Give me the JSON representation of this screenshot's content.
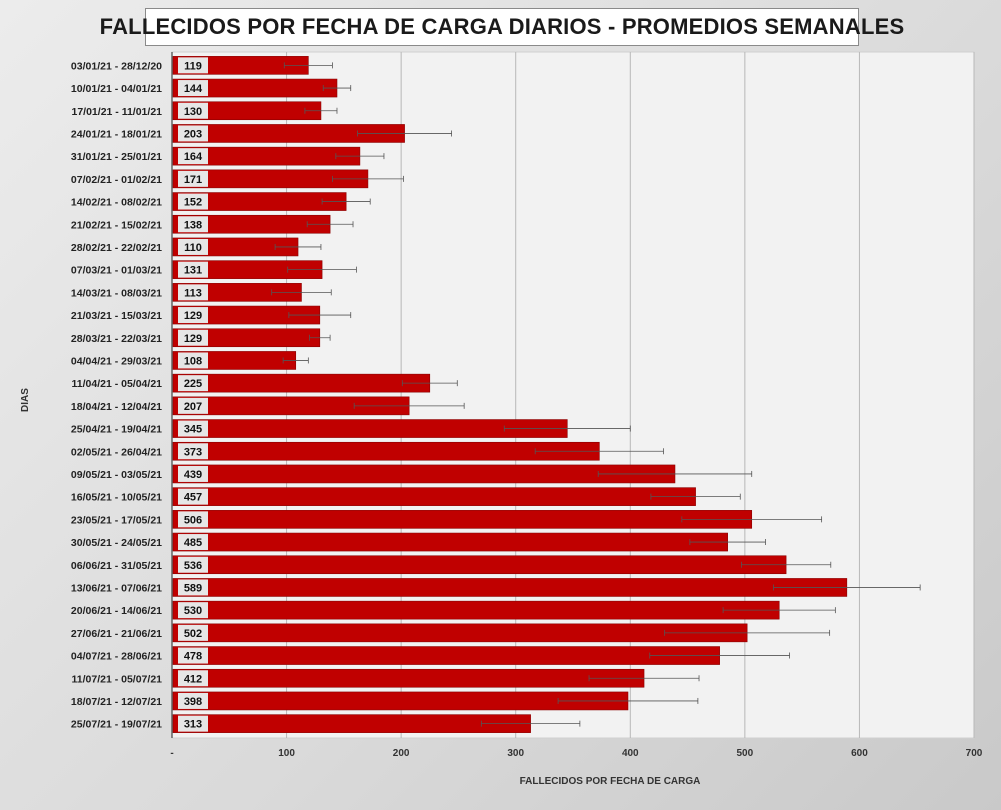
{
  "chart_data": {
    "type": "bar",
    "orientation": "horizontal",
    "title": "FALLECIDOS POR FECHA DE CARGA DIARIOS - PROMEDIOS SEMANALES",
    "xlabel": "FALLECIDOS POR FECHA DE CARGA",
    "ylabel": "DIAS",
    "xlim": [
      0,
      700
    ],
    "xticks": [
      "-",
      "100",
      "200",
      "300",
      "400",
      "500",
      "600",
      "700"
    ],
    "grid": true,
    "bar_color": "#c00000",
    "categories": [
      "03/01/21 - 28/12/20",
      "10/01/21 - 04/01/21",
      "17/01/21 - 11/01/21",
      "24/01/21 - 18/01/21",
      "31/01/21 - 25/01/21",
      "07/02/21 - 01/02/21",
      "14/02/21 - 08/02/21",
      "21/02/21 - 15/02/21",
      "28/02/21 - 22/02/21",
      "07/03/21 - 01/03/21",
      "14/03/21 - 08/03/21",
      "21/03/21 - 15/03/21",
      "28/03/21 - 22/03/21",
      "04/04/21 - 29/03/21",
      "11/04/21 - 05/04/21",
      "18/04/21 - 12/04/21",
      "25/04/21 - 19/04/21",
      "02/05/21 - 26/04/21",
      "09/05/21 - 03/05/21",
      "16/05/21 - 10/05/21",
      "23/05/21 - 17/05/21",
      "30/05/21 - 24/05/21",
      "06/06/21 - 31/05/21",
      "13/06/21 - 07/06/21",
      "20/06/21 - 14/06/21",
      "27/06/21 - 21/06/21",
      "04/07/21 - 28/06/21",
      "11/07/21 - 05/07/21",
      "18/07/21 - 12/07/21",
      "25/07/21 - 19/07/21"
    ],
    "values": [
      119,
      144,
      130,
      203,
      164,
      171,
      152,
      138,
      110,
      131,
      113,
      129,
      129,
      108,
      225,
      207,
      345,
      373,
      439,
      457,
      506,
      485,
      536,
      589,
      530,
      502,
      478,
      412,
      398,
      313
    ],
    "error_low": [
      98,
      132,
      116,
      162,
      143,
      140,
      131,
      118,
      90,
      101,
      87,
      102,
      120,
      97,
      201,
      159,
      290,
      317,
      372,
      418,
      445,
      452,
      497,
      525,
      481,
      430,
      417,
      364,
      337,
      270
    ],
    "error_high": [
      140,
      156,
      144,
      244,
      185,
      202,
      173,
      158,
      130,
      161,
      139,
      156,
      138,
      119,
      249,
      255,
      400,
      429,
      506,
      496,
      567,
      518,
      575,
      653,
      579,
      574,
      539,
      460,
      459,
      356
    ]
  }
}
